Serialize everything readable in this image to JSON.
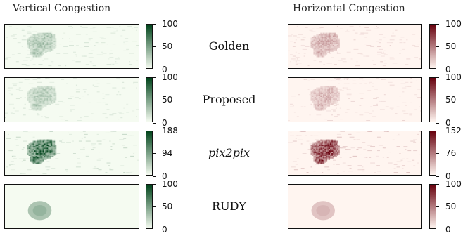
{
  "titles": {
    "vertical": "Vertical Congestion",
    "horizontal": "Horizontal Congestion"
  },
  "colors": {
    "green_low": "#f5fbf1",
    "green_high": "#00441b",
    "red_low": "#fff5f0",
    "red_high": "#67000d"
  },
  "chart_data": [
    {
      "type": "heatmap",
      "row": "Golden",
      "vertical": {
        "cmap": "Greens",
        "ticks": [
          "100",
          "50",
          "0"
        ],
        "vmax": 100,
        "hotspot_level": 0.35
      },
      "horizontal": {
        "cmap": "Reds",
        "ticks": [
          "100",
          "50",
          "0"
        ],
        "vmax": 100,
        "hotspot_level": 0.35
      }
    },
    {
      "type": "heatmap",
      "row": "Proposed",
      "vertical": {
        "cmap": "Greens",
        "ticks": [
          "100",
          "50",
          "0"
        ],
        "vmax": 100,
        "hotspot_level": 0.3
      },
      "horizontal": {
        "cmap": "Reds",
        "ticks": [
          "100",
          "50",
          "0"
        ],
        "vmax": 100,
        "hotspot_level": 0.3
      }
    },
    {
      "type": "heatmap",
      "row": "pix2pix",
      "vertical": {
        "cmap": "Greens",
        "ticks": [
          "188",
          "94",
          "0"
        ],
        "vmax": 188,
        "hotspot_level": 0.9
      },
      "horizontal": {
        "cmap": "Reds",
        "ticks": [
          "152",
          "76",
          "0"
        ],
        "vmax": 152,
        "hotspot_level": 0.95
      }
    },
    {
      "type": "heatmap",
      "row": "RUDY",
      "vertical": {
        "cmap": "Greens",
        "ticks": [
          "100",
          "50",
          "0"
        ],
        "vmax": 100,
        "hotspot_level": 0.3
      },
      "horizontal": {
        "cmap": "Reds",
        "ticks": [
          "100",
          "50",
          "0"
        ],
        "vmax": 100,
        "hotspot_level": 0.2
      }
    }
  ]
}
